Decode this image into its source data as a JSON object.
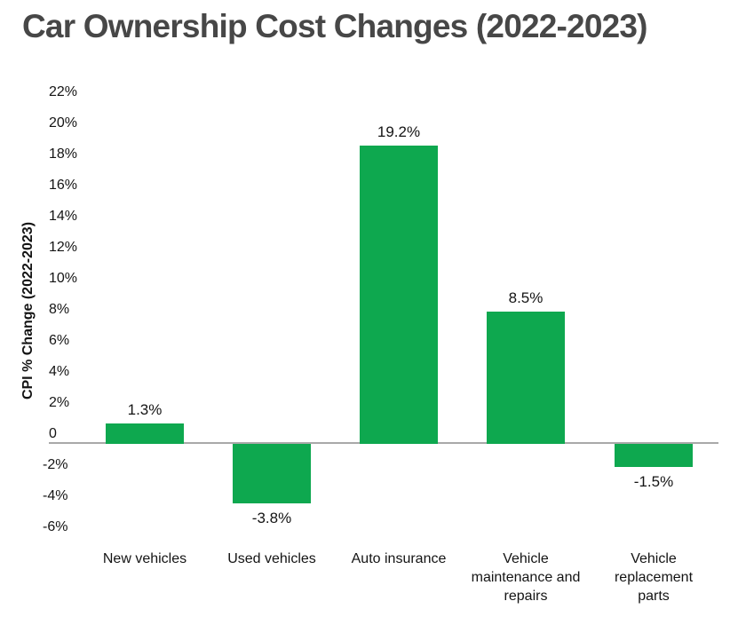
{
  "page": {
    "background": "#ffffff"
  },
  "colors": {
    "bar": "#0ea84f",
    "title_text": "#474747",
    "axis_text": "#141414",
    "zero_line": "#a9a9a9"
  },
  "chart_data": {
    "type": "bar",
    "title": "Car Ownership Cost Changes (2022-2023)",
    "ylabel": "CPI % Change (2022-2023)",
    "xlabel": "",
    "categories": [
      "New vehicles",
      "Used vehicles",
      "Auto insurance",
      "Vehicle maintenance and repairs",
      "Vehicle replacement parts"
    ],
    "category_lines": [
      [
        "New vehicles"
      ],
      [
        "Used vehicles"
      ],
      [
        "Auto insurance"
      ],
      [
        "Vehicle",
        "maintenance and",
        "repairs"
      ],
      [
        "Vehicle",
        "replacement",
        "parts"
      ]
    ],
    "values": [
      1.3,
      -3.8,
      19.2,
      8.5,
      -1.5
    ],
    "data_labels": [
      "1.3%",
      "-3.8%",
      "19.2%",
      "8.5%",
      "-1.5%"
    ],
    "ylim": [
      -6,
      22
    ],
    "ytick_step": 2,
    "yticks": [
      {
        "value": 22,
        "label": "22%"
      },
      {
        "value": 20,
        "label": "20%"
      },
      {
        "value": 18,
        "label": "18%"
      },
      {
        "value": 16,
        "label": "16%"
      },
      {
        "value": 14,
        "label": "14%"
      },
      {
        "value": 12,
        "label": "12%"
      },
      {
        "value": 10,
        "label": "10%"
      },
      {
        "value": 8,
        "label": "8%"
      },
      {
        "value": 6,
        "label": "6%"
      },
      {
        "value": 4,
        "label": "4%"
      },
      {
        "value": 2,
        "label": "2%"
      },
      {
        "value": 0,
        "label": "0"
      },
      {
        "value": -2,
        "label": "-2%"
      },
      {
        "value": -4,
        "label": "-4%"
      },
      {
        "value": -6,
        "label": "-6%"
      }
    ],
    "grid": false,
    "legend_position": "none",
    "baseline": 0,
    "bar_color": "#0ea84f"
  }
}
